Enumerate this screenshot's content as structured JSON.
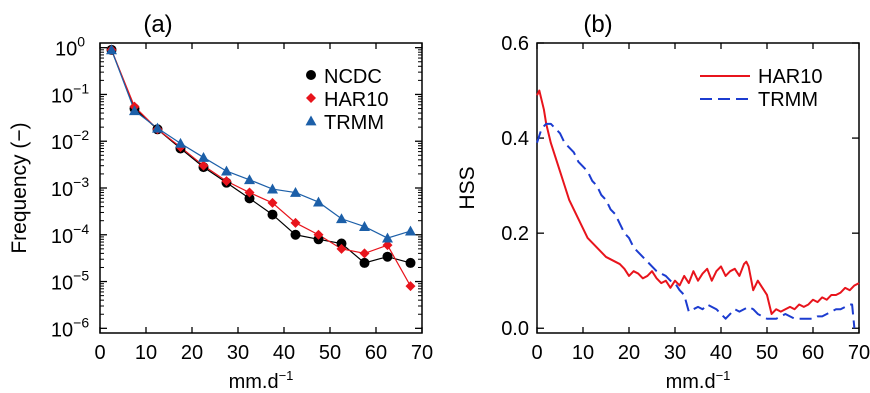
{
  "chart_data": [
    {
      "type": "line",
      "panel_label": "(a)",
      "xlabel": "mm.d",
      "xlabel_sup": "−1",
      "ylabel": "Frequency (−)",
      "xlim": [
        0,
        70
      ],
      "ylim_log10": [
        -6.1,
        0.1
      ],
      "yscale": "log",
      "xticks": [
        0,
        10,
        20,
        30,
        40,
        50,
        60,
        70
      ],
      "yticks": [
        {
          "exp": 0,
          "base": "10",
          "sup": "0"
        },
        {
          "exp": -1,
          "base": "10",
          "sup": "−1"
        },
        {
          "exp": -2,
          "base": "10",
          "sup": "−2"
        },
        {
          "exp": -3,
          "base": "10",
          "sup": "−3"
        },
        {
          "exp": -4,
          "base": "10",
          "sup": "−4"
        },
        {
          "exp": -5,
          "base": "10",
          "sup": "−5"
        },
        {
          "exp": -6,
          "base": "10",
          "sup": "−6"
        }
      ],
      "legend_position": "top-right",
      "series": [
        {
          "name": "NCDC",
          "color": "#000000",
          "line_color": "#000000",
          "marker": "circle",
          "x": [
            2.5,
            7.5,
            12.5,
            17.5,
            22.5,
            27.5,
            32.5,
            37.5,
            42.5,
            47.5,
            52.5,
            57.5,
            62.5,
            67.5
          ],
          "y": [
            0.9,
            0.05,
            0.018,
            0.007,
            0.0028,
            0.0013,
            0.0006,
            0.00027,
            0.0001,
            8e-05,
            6.5e-05,
            2.5e-05,
            3.4e-05,
            2.5e-05
          ]
        },
        {
          "name": "HAR10",
          "color": "#e8141c",
          "line_color": "#e8141c",
          "marker": "diamond",
          "x": [
            2.5,
            7.5,
            12.5,
            17.5,
            22.5,
            27.5,
            32.5,
            37.5,
            42.5,
            47.5,
            52.5,
            57.5,
            62.5,
            67.5
          ],
          "y": [
            0.9,
            0.055,
            0.018,
            0.0075,
            0.003,
            0.0014,
            0.0008,
            0.00048,
            0.00018,
            0.0001,
            5e-05,
            4e-05,
            6e-05,
            8e-06
          ]
        },
        {
          "name": "TRMM",
          "color": "#1c5fa8",
          "line_color": "#1c5fa8",
          "marker": "triangle",
          "x": [
            2.5,
            7.5,
            12.5,
            17.5,
            22.5,
            27.5,
            32.5,
            37.5,
            42.5,
            47.5,
            52.5,
            57.5,
            62.5,
            67.5
          ],
          "y": [
            0.9,
            0.045,
            0.019,
            0.009,
            0.0045,
            0.0023,
            0.0015,
            0.00095,
            0.0008,
            0.0005,
            0.00022,
            0.00015,
            8.5e-05,
            0.00012
          ]
        }
      ]
    },
    {
      "type": "line",
      "panel_label": "(b)",
      "xlabel": "mm.d",
      "xlabel_sup": "−1",
      "ylabel": "HSS",
      "xlim": [
        0,
        70
      ],
      "ylim": [
        -0.01,
        0.6
      ],
      "xticks": [
        0,
        10,
        20,
        30,
        40,
        50,
        60,
        70
      ],
      "yticks": [
        0.0,
        0.2,
        0.4,
        0.6
      ],
      "ytick_labels": [
        "0.0",
        "0.2",
        "0.4",
        "0.6"
      ],
      "legend_position": "top-right",
      "series": [
        {
          "name": "HAR10",
          "color": "#e8141c",
          "dash": "solid",
          "x": [
            0,
            0.5,
            1,
            1.5,
            2,
            3,
            4,
            5,
            6,
            7,
            8,
            9,
            10,
            11,
            12,
            13,
            14,
            15,
            16,
            17,
            18,
            19,
            20,
            21,
            22,
            23,
            24,
            25,
            26,
            27,
            28,
            29,
            30,
            31,
            32,
            33,
            34,
            35,
            36,
            37,
            38,
            39,
            40,
            41,
            42,
            43,
            44,
            45,
            45.5,
            46,
            47,
            48,
            49,
            50,
            50.5,
            51,
            52,
            53,
            54,
            55,
            56,
            57,
            58,
            59,
            60,
            61,
            62,
            63,
            64,
            65,
            66,
            67,
            68,
            69,
            70
          ],
          "y": [
            0.49,
            0.5,
            0.48,
            0.46,
            0.43,
            0.39,
            0.36,
            0.33,
            0.3,
            0.27,
            0.25,
            0.23,
            0.21,
            0.19,
            0.18,
            0.17,
            0.16,
            0.15,
            0.145,
            0.14,
            0.135,
            0.125,
            0.11,
            0.12,
            0.115,
            0.105,
            0.11,
            0.12,
            0.105,
            0.095,
            0.1,
            0.085,
            0.1,
            0.09,
            0.11,
            0.095,
            0.12,
            0.1,
            0.115,
            0.125,
            0.1,
            0.12,
            0.13,
            0.11,
            0.12,
            0.125,
            0.11,
            0.135,
            0.14,
            0.13,
            0.08,
            0.1,
            0.085,
            0.07,
            0.05,
            0.03,
            0.04,
            0.035,
            0.04,
            0.045,
            0.04,
            0.05,
            0.045,
            0.05,
            0.06,
            0.055,
            0.065,
            0.06,
            0.07,
            0.07,
            0.075,
            0.085,
            0.08,
            0.09,
            0.095
          ]
        },
        {
          "name": "TRMM",
          "color": "#1c3cd0",
          "dash": "dashed",
          "x": [
            0,
            1,
            2,
            3,
            4,
            5,
            6,
            7,
            8,
            9,
            10,
            11,
            12,
            13,
            14,
            15,
            16,
            17,
            18,
            19,
            20,
            21,
            22,
            23,
            24,
            25,
            26,
            27,
            28,
            29,
            30,
            31,
            32,
            33,
            34,
            35,
            36,
            37,
            38,
            39,
            40,
            41,
            42,
            43,
            44,
            45,
            46,
            47,
            48,
            49,
            50,
            51,
            52,
            53,
            54,
            55,
            56,
            57,
            58,
            59,
            60,
            61,
            62,
            63,
            64,
            65,
            66,
            67,
            68,
            68.5,
            69
          ],
          "y": [
            0.39,
            0.42,
            0.43,
            0.43,
            0.42,
            0.41,
            0.39,
            0.38,
            0.37,
            0.35,
            0.34,
            0.33,
            0.31,
            0.3,
            0.28,
            0.27,
            0.25,
            0.24,
            0.22,
            0.2,
            0.19,
            0.17,
            0.16,
            0.15,
            0.14,
            0.13,
            0.12,
            0.115,
            0.11,
            0.1,
            0.095,
            0.08,
            0.07,
            0.035,
            0.04,
            0.045,
            0.04,
            0.05,
            0.045,
            0.04,
            0.03,
            0.02,
            0.03,
            0.04,
            0.035,
            0.04,
            0.045,
            0.04,
            0.03,
            0.025,
            0.02,
            0.02,
            0.02,
            0.025,
            0.03,
            0.025,
            0.02,
            0.02,
            0.02,
            0.02,
            0.02,
            0.025,
            0.025,
            0.03,
            0.035,
            0.04,
            0.04,
            0.045,
            0.05,
            0.05,
            0.0
          ]
        }
      ]
    }
  ]
}
